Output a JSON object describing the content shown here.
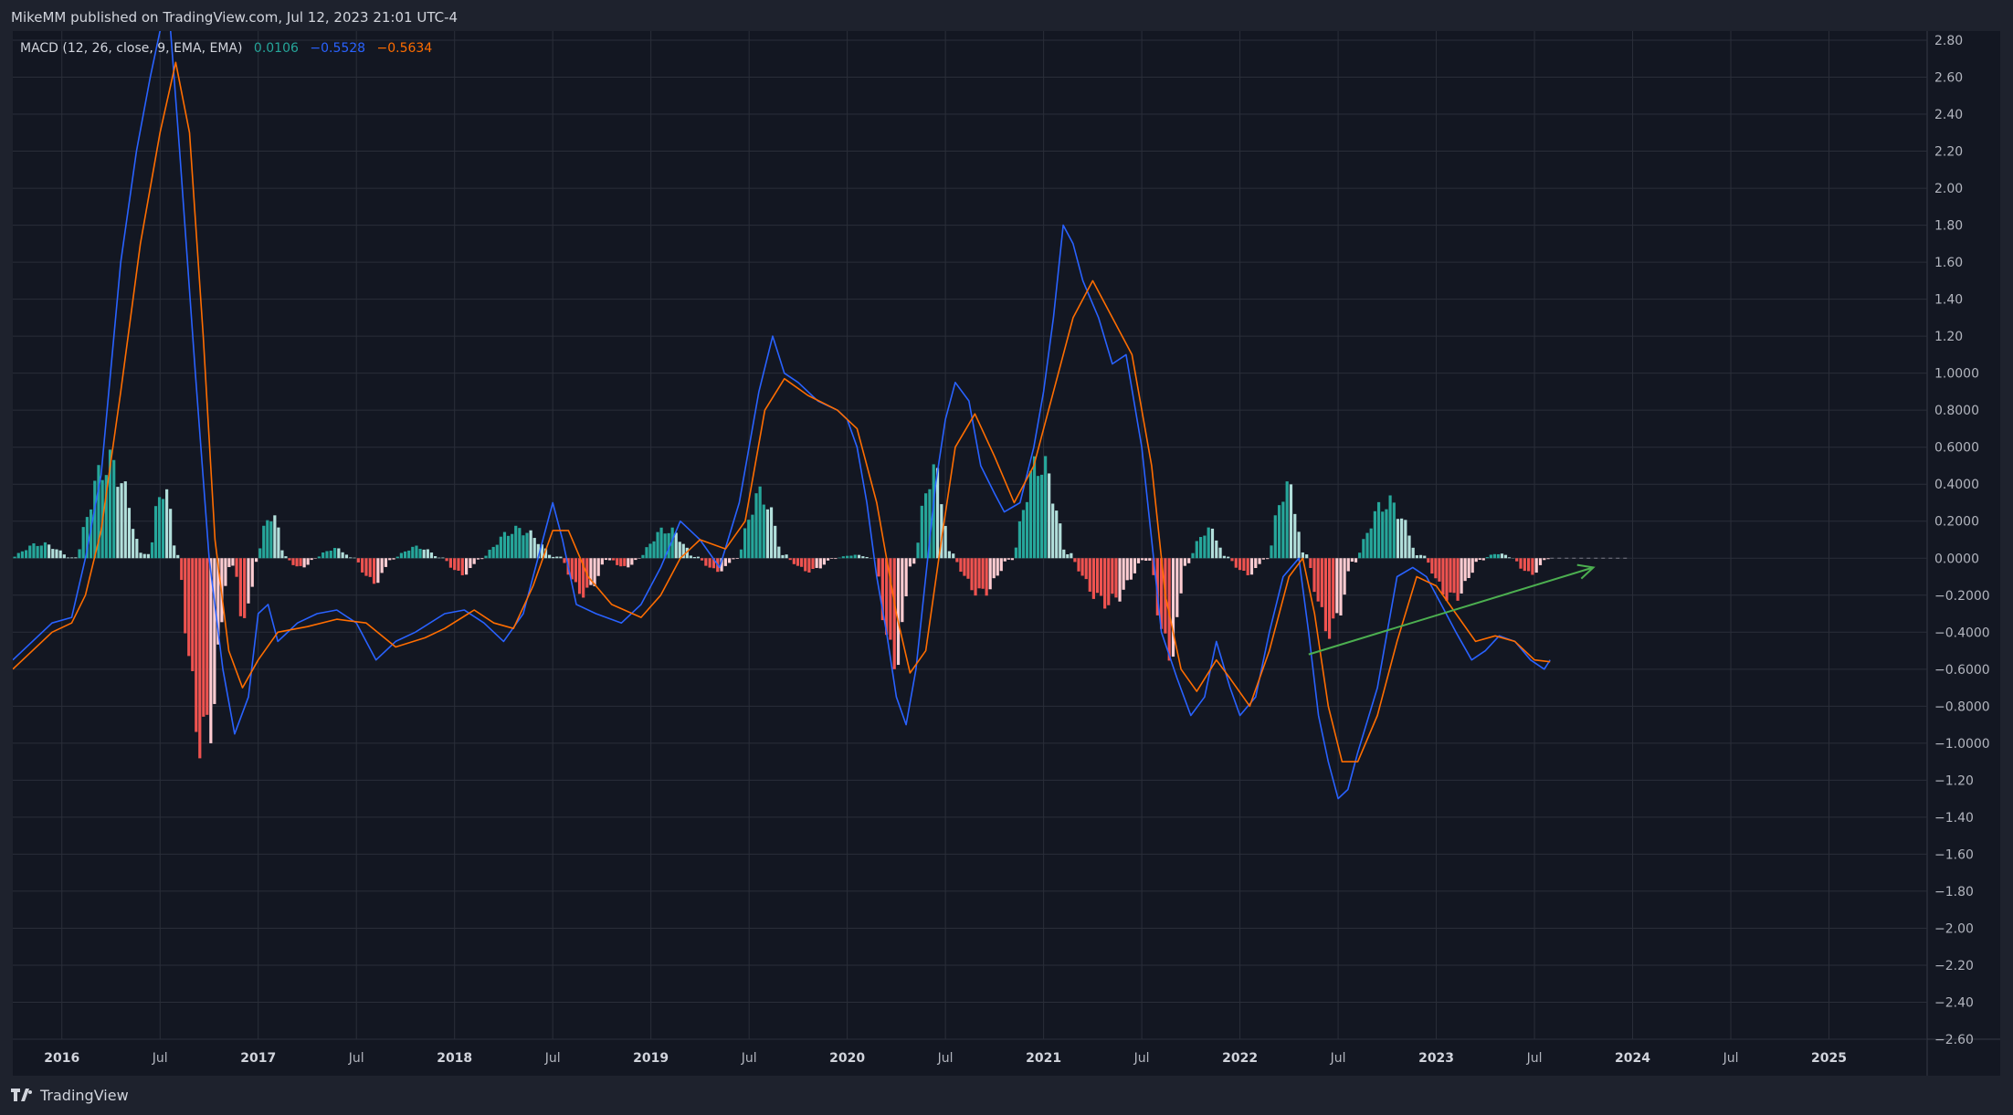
{
  "header": {
    "publisher": "MikeMM published on TradingView.com, Jul 12, 2023 21:01 UTC-4"
  },
  "legend": {
    "name": "MACD (12, 26, close, 9, EMA, EMA)",
    "hist_value": "0.0106",
    "macd_value": "−0.5528",
    "signal_value": "−0.5634"
  },
  "footer": {
    "brand": "TradingView"
  },
  "colors": {
    "background": "#131722",
    "frame": "#1e222d",
    "grid": "#2a2e39",
    "macd": "#2962ff",
    "signal": "#ff6d00",
    "hist_pos_strong": "#26a69a",
    "hist_pos_weak": "#b2dfdb",
    "hist_neg_strong": "#ef5350",
    "hist_neg_weak": "#ffcdd2",
    "annotation": "#4caf50",
    "text": "#b2b5be"
  },
  "chart_data": {
    "type": "line",
    "title": "",
    "xlabel": "",
    "ylabel": "",
    "xlim": [
      2015.75,
      2025.5
    ],
    "ylim": [
      -2.6,
      2.8
    ],
    "y_ticks": [
      "2.80",
      "2.60",
      "2.40",
      "2.20",
      "2.00",
      "1.80",
      "1.60",
      "1.40",
      "1.20",
      "1.0000",
      "0.8000",
      "0.6000",
      "0.4000",
      "0.2000",
      "0.0000",
      "−0.2000",
      "−0.4000",
      "−0.6000",
      "−0.8000",
      "−1.0000",
      "−1.20",
      "−1.40",
      "−1.60",
      "−1.80",
      "−2.00",
      "−2.20",
      "−2.40",
      "−2.60"
    ],
    "y_tick_values": [
      2.8,
      2.6,
      2.4,
      2.2,
      2.0,
      1.8,
      1.6,
      1.4,
      1.2,
      1.0,
      0.8,
      0.6,
      0.4,
      0.2,
      0.0,
      -0.2,
      -0.4,
      -0.6,
      -0.8,
      -1.0,
      -1.2,
      -1.4,
      -1.6,
      -1.8,
      -2.0,
      -2.2,
      -2.4,
      -2.6
    ],
    "x_ticks": [
      {
        "label": "2016",
        "x": 2016.0,
        "year": true
      },
      {
        "label": "Jul",
        "x": 2016.5,
        "year": false
      },
      {
        "label": "2017",
        "x": 2017.0,
        "year": true
      },
      {
        "label": "Jul",
        "x": 2017.5,
        "year": false
      },
      {
        "label": "2018",
        "x": 2018.0,
        "year": true
      },
      {
        "label": "Jul",
        "x": 2018.5,
        "year": false
      },
      {
        "label": "2019",
        "x": 2019.0,
        "year": true
      },
      {
        "label": "Jul",
        "x": 2019.5,
        "year": false
      },
      {
        "label": "2020",
        "x": 2020.0,
        "year": true
      },
      {
        "label": "Jul",
        "x": 2020.5,
        "year": false
      },
      {
        "label": "2021",
        "x": 2021.0,
        "year": true
      },
      {
        "label": "Jul",
        "x": 2021.5,
        "year": false
      },
      {
        "label": "2022",
        "x": 2022.0,
        "year": true
      },
      {
        "label": "Jul",
        "x": 2022.5,
        "year": false
      },
      {
        "label": "2023",
        "x": 2023.0,
        "year": true
      },
      {
        "label": "Jul",
        "x": 2023.5,
        "year": false
      },
      {
        "label": "2024",
        "x": 2024.0,
        "year": true
      },
      {
        "label": "Jul",
        "x": 2024.5,
        "year": false
      },
      {
        "label": "2025",
        "x": 2025.0,
        "year": true
      }
    ],
    "series": [
      {
        "key": "macd",
        "points": [
          [
            2015.75,
            -0.55
          ],
          [
            2015.85,
            -0.45
          ],
          [
            2015.95,
            -0.35
          ],
          [
            2016.05,
            -0.32
          ],
          [
            2016.12,
            0.0
          ],
          [
            2016.2,
            0.45
          ],
          [
            2016.3,
            1.6
          ],
          [
            2016.38,
            2.2
          ],
          [
            2016.45,
            2.6
          ],
          [
            2016.5,
            2.85
          ],
          [
            2016.55,
            2.9
          ],
          [
            2016.6,
            2.2
          ],
          [
            2016.68,
            1.0
          ],
          [
            2016.75,
            0.0
          ],
          [
            2016.82,
            -0.6
          ],
          [
            2016.88,
            -0.95
          ],
          [
            2016.95,
            -0.75
          ],
          [
            2017.0,
            -0.3
          ],
          [
            2017.05,
            -0.25
          ],
          [
            2017.1,
            -0.45
          ],
          [
            2017.2,
            -0.35
          ],
          [
            2017.3,
            -0.3
          ],
          [
            2017.4,
            -0.28
          ],
          [
            2017.5,
            -0.35
          ],
          [
            2017.6,
            -0.55
          ],
          [
            2017.7,
            -0.45
          ],
          [
            2017.8,
            -0.4
          ],
          [
            2017.95,
            -0.3
          ],
          [
            2018.05,
            -0.28
          ],
          [
            2018.15,
            -0.35
          ],
          [
            2018.25,
            -0.45
          ],
          [
            2018.35,
            -0.3
          ],
          [
            2018.45,
            0.1
          ],
          [
            2018.5,
            0.3
          ],
          [
            2018.55,
            0.1
          ],
          [
            2018.62,
            -0.25
          ],
          [
            2018.72,
            -0.3
          ],
          [
            2018.85,
            -0.35
          ],
          [
            2018.95,
            -0.25
          ],
          [
            2019.05,
            -0.05
          ],
          [
            2019.15,
            0.2
          ],
          [
            2019.25,
            0.1
          ],
          [
            2019.35,
            -0.05
          ],
          [
            2019.45,
            0.3
          ],
          [
            2019.55,
            0.9
          ],
          [
            2019.62,
            1.2
          ],
          [
            2019.68,
            1.0
          ],
          [
            2019.75,
            0.95
          ],
          [
            2019.85,
            0.85
          ],
          [
            2019.95,
            0.8
          ],
          [
            2020.0,
            0.75
          ],
          [
            2020.05,
            0.6
          ],
          [
            2020.1,
            0.3
          ],
          [
            2020.15,
            -0.1
          ],
          [
            2020.2,
            -0.4
          ],
          [
            2020.25,
            -0.75
          ],
          [
            2020.3,
            -0.9
          ],
          [
            2020.35,
            -0.6
          ],
          [
            2020.4,
            -0.1
          ],
          [
            2020.45,
            0.4
          ],
          [
            2020.5,
            0.75
          ],
          [
            2020.55,
            0.95
          ],
          [
            2020.62,
            0.85
          ],
          [
            2020.68,
            0.5
          ],
          [
            2020.75,
            0.35
          ],
          [
            2020.8,
            0.25
          ],
          [
            2020.88,
            0.3
          ],
          [
            2020.95,
            0.6
          ],
          [
            2021.0,
            0.9
          ],
          [
            2021.05,
            1.3
          ],
          [
            2021.1,
            1.8
          ],
          [
            2021.15,
            1.7
          ],
          [
            2021.2,
            1.5
          ],
          [
            2021.28,
            1.3
          ],
          [
            2021.35,
            1.05
          ],
          [
            2021.42,
            1.1
          ],
          [
            2021.5,
            0.6
          ],
          [
            2021.55,
            0.1
          ],
          [
            2021.6,
            -0.4
          ],
          [
            2021.68,
            -0.65
          ],
          [
            2021.75,
            -0.85
          ],
          [
            2021.82,
            -0.75
          ],
          [
            2021.88,
            -0.45
          ],
          [
            2021.95,
            -0.7
          ],
          [
            2022.0,
            -0.85
          ],
          [
            2022.08,
            -0.75
          ],
          [
            2022.15,
            -0.4
          ],
          [
            2022.22,
            -0.1
          ],
          [
            2022.3,
            0.0
          ],
          [
            2022.35,
            -0.4
          ],
          [
            2022.4,
            -0.85
          ],
          [
            2022.45,
            -1.1
          ],
          [
            2022.5,
            -1.3
          ],
          [
            2022.55,
            -1.25
          ],
          [
            2022.6,
            -1.05
          ],
          [
            2022.7,
            -0.7
          ],
          [
            2022.75,
            -0.4
          ],
          [
            2022.8,
            -0.1
          ],
          [
            2022.88,
            -0.05
          ],
          [
            2022.95,
            -0.1
          ],
          [
            2023.0,
            -0.2
          ],
          [
            2023.1,
            -0.4
          ],
          [
            2023.18,
            -0.55
          ],
          [
            2023.25,
            -0.5
          ],
          [
            2023.32,
            -0.42
          ],
          [
            2023.4,
            -0.45
          ],
          [
            2023.48,
            -0.55
          ],
          [
            2023.55,
            -0.6
          ],
          [
            2023.58,
            -0.55
          ]
        ]
      },
      {
        "key": "signal",
        "points": [
          [
            2015.75,
            -0.6
          ],
          [
            2015.85,
            -0.5
          ],
          [
            2015.95,
            -0.4
          ],
          [
            2016.05,
            -0.35
          ],
          [
            2016.12,
            -0.2
          ],
          [
            2016.2,
            0.15
          ],
          [
            2016.3,
            0.9
          ],
          [
            2016.4,
            1.7
          ],
          [
            2016.5,
            2.3
          ],
          [
            2016.58,
            2.68
          ],
          [
            2016.65,
            2.3
          ],
          [
            2016.72,
            1.2
          ],
          [
            2016.78,
            0.1
          ],
          [
            2016.85,
            -0.5
          ],
          [
            2016.92,
            -0.7
          ],
          [
            2017.0,
            -0.55
          ],
          [
            2017.1,
            -0.4
          ],
          [
            2017.25,
            -0.37
          ],
          [
            2017.4,
            -0.33
          ],
          [
            2017.55,
            -0.35
          ],
          [
            2017.7,
            -0.48
          ],
          [
            2017.85,
            -0.43
          ],
          [
            2017.95,
            -0.38
          ],
          [
            2018.1,
            -0.28
          ],
          [
            2018.2,
            -0.35
          ],
          [
            2018.3,
            -0.38
          ],
          [
            2018.4,
            -0.15
          ],
          [
            2018.5,
            0.15
          ],
          [
            2018.58,
            0.15
          ],
          [
            2018.68,
            -0.1
          ],
          [
            2018.8,
            -0.25
          ],
          [
            2018.95,
            -0.32
          ],
          [
            2019.05,
            -0.2
          ],
          [
            2019.15,
            0.0
          ],
          [
            2019.25,
            0.1
          ],
          [
            2019.38,
            0.05
          ],
          [
            2019.48,
            0.2
          ],
          [
            2019.58,
            0.8
          ],
          [
            2019.68,
            0.97
          ],
          [
            2019.8,
            0.88
          ],
          [
            2019.95,
            0.8
          ],
          [
            2020.05,
            0.7
          ],
          [
            2020.15,
            0.3
          ],
          [
            2020.25,
            -0.3
          ],
          [
            2020.32,
            -0.62
          ],
          [
            2020.4,
            -0.5
          ],
          [
            2020.48,
            0.1
          ],
          [
            2020.55,
            0.6
          ],
          [
            2020.65,
            0.78
          ],
          [
            2020.75,
            0.55
          ],
          [
            2020.85,
            0.3
          ],
          [
            2020.95,
            0.5
          ],
          [
            2021.05,
            0.9
          ],
          [
            2021.15,
            1.3
          ],
          [
            2021.25,
            1.5
          ],
          [
            2021.35,
            1.3
          ],
          [
            2021.45,
            1.1
          ],
          [
            2021.55,
            0.5
          ],
          [
            2021.62,
            -0.2
          ],
          [
            2021.7,
            -0.6
          ],
          [
            2021.78,
            -0.72
          ],
          [
            2021.88,
            -0.55
          ],
          [
            2021.95,
            -0.65
          ],
          [
            2022.05,
            -0.8
          ],
          [
            2022.15,
            -0.5
          ],
          [
            2022.25,
            -0.1
          ],
          [
            2022.32,
            0.0
          ],
          [
            2022.38,
            -0.3
          ],
          [
            2022.45,
            -0.8
          ],
          [
            2022.52,
            -1.1
          ],
          [
            2022.6,
            -1.1
          ],
          [
            2022.7,
            -0.85
          ],
          [
            2022.8,
            -0.45
          ],
          [
            2022.9,
            -0.1
          ],
          [
            2023.0,
            -0.15
          ],
          [
            2023.1,
            -0.3
          ],
          [
            2023.2,
            -0.45
          ],
          [
            2023.3,
            -0.42
          ],
          [
            2023.4,
            -0.45
          ],
          [
            2023.5,
            -0.55
          ],
          [
            2023.58,
            -0.56
          ]
        ]
      }
    ],
    "histogram_segments": [
      [
        2015.75,
        2016.08,
        0.09
      ],
      [
        2016.08,
        2016.45,
        0.6
      ],
      [
        2016.45,
        2016.6,
        0.45
      ],
      [
        2016.6,
        2016.88,
        -1.15
      ],
      [
        2016.88,
        2017.0,
        -0.4
      ],
      [
        2017.0,
        2017.15,
        0.28
      ],
      [
        2017.15,
        2017.3,
        -0.06
      ],
      [
        2017.3,
        2017.5,
        0.06
      ],
      [
        2017.5,
        2017.7,
        -0.15
      ],
      [
        2017.7,
        2017.95,
        0.07
      ],
      [
        2017.95,
        2018.15,
        -0.1
      ],
      [
        2018.15,
        2018.55,
        0.18
      ],
      [
        2018.55,
        2018.8,
        -0.22
      ],
      [
        2018.8,
        2018.95,
        -0.06
      ],
      [
        2018.95,
        2019.25,
        0.18
      ],
      [
        2019.25,
        2019.45,
        -0.08
      ],
      [
        2019.45,
        2019.7,
        0.4
      ],
      [
        2019.7,
        2019.95,
        -0.08
      ],
      [
        2019.95,
        2020.15,
        0.02
      ],
      [
        2020.15,
        2020.35,
        -0.65
      ],
      [
        2020.35,
        2020.55,
        0.55
      ],
      [
        2020.55,
        2020.85,
        -0.22
      ],
      [
        2020.85,
        2021.15,
        0.6
      ],
      [
        2021.15,
        2021.55,
        -0.28
      ],
      [
        2021.55,
        2021.75,
        -0.6
      ],
      [
        2021.75,
        2021.95,
        0.18
      ],
      [
        2021.95,
        2022.15,
        -0.1
      ],
      [
        2022.15,
        2022.35,
        0.45
      ],
      [
        2022.35,
        2022.6,
        -0.45
      ],
      [
        2022.6,
        2022.95,
        0.35
      ],
      [
        2022.95,
        2023.25,
        -0.25
      ],
      [
        2023.25,
        2023.4,
        0.03
      ],
      [
        2023.4,
        2023.58,
        -0.1
      ]
    ],
    "annotation_arrow": {
      "from": [
        2022.35,
        -0.52
      ],
      "to": [
        2023.8,
        -0.05
      ]
    },
    "zero_extension": {
      "from": 2023.58,
      "to": 2023.8,
      "y": 0.0
    }
  }
}
